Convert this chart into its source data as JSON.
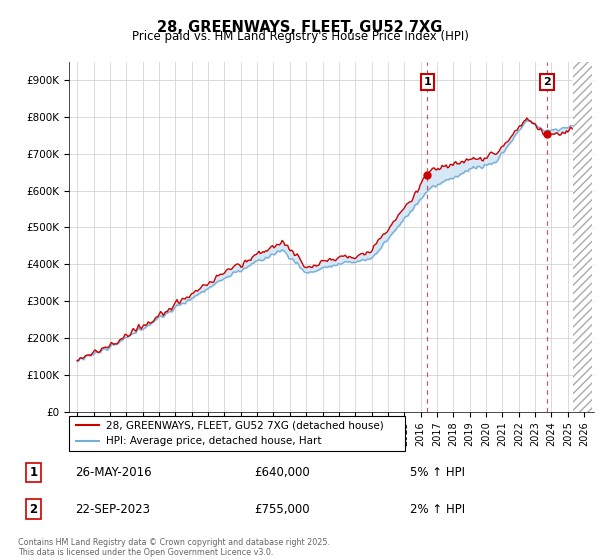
{
  "title": "28, GREENWAYS, FLEET, GU52 7XG",
  "subtitle": "Price paid vs. HM Land Registry's House Price Index (HPI)",
  "ylabel_ticks": [
    "£0",
    "£100K",
    "£200K",
    "£300K",
    "£400K",
    "£500K",
    "£600K",
    "£700K",
    "£800K",
    "£900K"
  ],
  "ytick_values": [
    0,
    100000,
    200000,
    300000,
    400000,
    500000,
    600000,
    700000,
    800000,
    900000
  ],
  "ylim": [
    0,
    950000
  ],
  "red_color": "#cc0000",
  "blue_color": "#7aadd4",
  "fill_color": "#d6e8f5",
  "marker1_date": 2016.4,
  "marker1_value": 640000,
  "marker2_date": 2023.72,
  "marker2_value": 755000,
  "legend_label1": "28, GREENWAYS, FLEET, GU52 7XG (detached house)",
  "legend_label2": "HPI: Average price, detached house, Hart",
  "annotation1_date": "26-MAY-2016",
  "annotation1_price": "£640,000",
  "annotation1_hpi": "5% ↑ HPI",
  "annotation2_date": "22-SEP-2023",
  "annotation2_price": "£755,000",
  "annotation2_hpi": "2% ↑ HPI",
  "footer": "Contains HM Land Registry data © Crown copyright and database right 2025.\nThis data is licensed under the Open Government Licence v3.0.",
  "background_color": "#ffffff",
  "grid_color": "#cccccc"
}
